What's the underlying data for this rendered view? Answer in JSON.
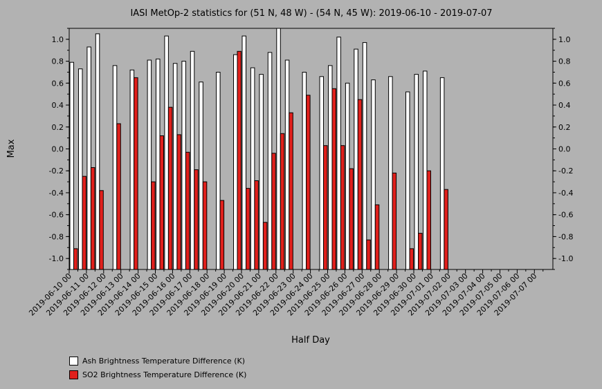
{
  "chart_data": {
    "type": "bar",
    "title": "IASI MetOp-2 statistics for (51 N, 48 W) - (54 N, 45 W): 2019-06-10 - 2019-07-07",
    "xlabel": "Half Day",
    "ylabel": "Max",
    "ylim": [
      -1.1,
      1.1
    ],
    "yticks": [
      -1.0,
      -0.8,
      -0.6,
      -0.4,
      -0.2,
      0.0,
      0.2,
      0.4,
      0.6,
      0.8,
      1.0
    ],
    "ytick_labels": [
      "-1.0",
      "-0.8",
      "-0.6",
      "-0.4",
      "-0.2",
      "0.0",
      "0.2",
      "0.4",
      "0.6",
      "0.8",
      "1.0"
    ],
    "categories": [
      "2019-06-10 00",
      "2019-06-10 12",
      "2019-06-11 00",
      "2019-06-11 12",
      "2019-06-12 00",
      "2019-06-12 12",
      "2019-06-13 00",
      "2019-06-13 12",
      "2019-06-14 00",
      "2019-06-14 12",
      "2019-06-15 00",
      "2019-06-15 12",
      "2019-06-16 00",
      "2019-06-16 12",
      "2019-06-17 00",
      "2019-06-17 12",
      "2019-06-18 00",
      "2019-06-18 12",
      "2019-06-19 00",
      "2019-06-19 12",
      "2019-06-20 00",
      "2019-06-20 12",
      "2019-06-21 00",
      "2019-06-21 12",
      "2019-06-22 00",
      "2019-06-22 12",
      "2019-06-23 00",
      "2019-06-23 12",
      "2019-06-24 00",
      "2019-06-24 12",
      "2019-06-25 00",
      "2019-06-25 12",
      "2019-06-26 00",
      "2019-06-26 12",
      "2019-06-27 00",
      "2019-06-27 12",
      "2019-06-28 00",
      "2019-06-28 12",
      "2019-06-29 00",
      "2019-06-29 12",
      "2019-06-30 00",
      "2019-06-30 12",
      "2019-07-01 00",
      "2019-07-01 12",
      "2019-07-02 00",
      "2019-07-02 12",
      "2019-07-03 00",
      "2019-07-03 12",
      "2019-07-04 00",
      "2019-07-04 12",
      "2019-07-05 00",
      "2019-07-05 12",
      "2019-07-06 00",
      "2019-07-06 12",
      "2019-07-07 00",
      "2019-07-07 12"
    ],
    "tick_labels": [
      "2019-06-10 00",
      "2019-06-11 00",
      "2019-06-12 00",
      "2019-06-13 00",
      "2019-06-14 00",
      "2019-06-15 00",
      "2019-06-16 00",
      "2019-06-17 00",
      "2019-06-18 00",
      "2019-06-19 00",
      "2019-06-20 00",
      "2019-06-21 00",
      "2019-06-22 00",
      "2019-06-23 00",
      "2019-06-24 00",
      "2019-06-25 00",
      "2019-06-26 00",
      "2019-06-27 00",
      "2019-06-28 00",
      "2019-06-29 00",
      "2019-06-30 00",
      "2019-07-01 00",
      "2019-07-02 00",
      "2019-07-03 00",
      "2019-07-04 00",
      "2019-07-05 00",
      "2019-07-06 00",
      "2019-07-07 00"
    ],
    "series": [
      {
        "name": "Ash Brightness Temperature Difference (K)",
        "color": "#ffffff",
        "values": [
          0.79,
          0.73,
          0.93,
          1.05,
          null,
          0.76,
          null,
          0.72,
          null,
          0.81,
          0.82,
          1.03,
          0.78,
          0.8,
          0.89,
          0.61,
          null,
          0.7,
          null,
          0.86,
          1.03,
          0.74,
          0.68,
          0.88,
          1.1,
          0.81,
          null,
          0.7,
          null,
          0.66,
          0.76,
          1.02,
          0.6,
          0.91,
          0.97,
          0.63,
          null,
          0.66,
          null,
          0.52,
          0.68,
          0.71,
          null,
          0.65,
          null,
          null,
          null,
          null,
          null,
          null,
          null,
          null,
          null,
          null,
          null,
          null
        ]
      },
      {
        "name": "SO2 Brightness Temperature Difference (K)",
        "color": "#e0201c",
        "values": [
          -0.91,
          -0.25,
          -0.17,
          -0.38,
          null,
          0.23,
          null,
          0.65,
          null,
          -0.3,
          0.12,
          0.38,
          0.13,
          -0.03,
          -0.19,
          -0.3,
          null,
          -0.47,
          null,
          0.89,
          -0.36,
          -0.29,
          -0.67,
          -0.04,
          0.14,
          0.33,
          null,
          0.49,
          null,
          0.03,
          0.55,
          0.03,
          -0.18,
          0.45,
          -0.83,
          -0.51,
          null,
          -0.22,
          null,
          -0.91,
          -0.77,
          -0.2,
          null,
          -0.37,
          null,
          null,
          null,
          null,
          null,
          null,
          null,
          null,
          null,
          null,
          null,
          null
        ]
      }
    ],
    "legend_position": "bottom-left",
    "grid": false
  }
}
